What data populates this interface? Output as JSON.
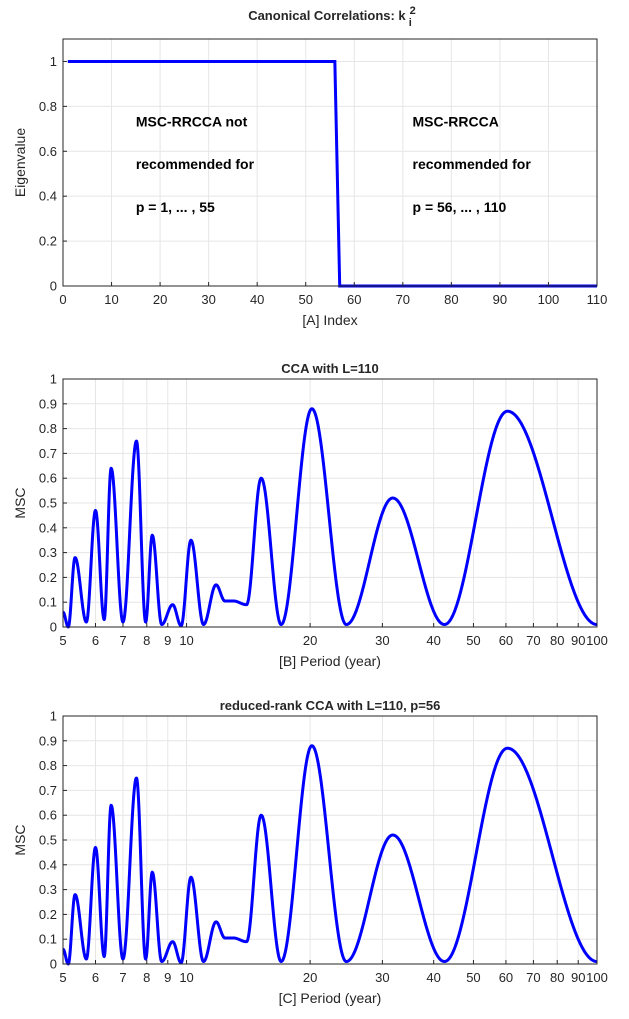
{
  "chart_data": [
    {
      "panel": "A",
      "type": "line",
      "title_prefix": "Canonical Correlations: k",
      "title_sup": "2",
      "title_sub": "i",
      "xlabel": "[A] Index",
      "ylabel": "Eigenvalue",
      "xlim": [
        0,
        110
      ],
      "ylim": [
        0,
        1.1
      ],
      "xticks": [
        0,
        10,
        20,
        30,
        40,
        50,
        60,
        70,
        80,
        90,
        100,
        110
      ],
      "xtick_labels": [
        "0",
        "10",
        "20",
        "30",
        "40",
        "50",
        "60",
        "70",
        "80",
        "90",
        "100",
        "110"
      ],
      "yticks": [
        0,
        0.2,
        0.4,
        0.6,
        0.8,
        1
      ],
      "ytick_labels": [
        "0",
        "0.2",
        "0.4",
        "0.6",
        "0.8",
        "1"
      ],
      "grid": true,
      "color": "#0000ff",
      "series": [
        {
          "x": [
            1,
            56,
            57,
            110
          ],
          "y": [
            1,
            1,
            0,
            0
          ]
        }
      ],
      "annotations": [
        {
          "lines": [
            "MSC-RRCCA not",
            "recommended for",
            "p = 1, ... , 55"
          ],
          "x": 15,
          "y": [
            0.71,
            0.52,
            0.33
          ]
        },
        {
          "lines": [
            "MSC-RRCCA",
            "recommended for",
            "p = 56, ... , 110"
          ],
          "x": 72,
          "y": [
            0.71,
            0.52,
            0.33
          ]
        }
      ]
    },
    {
      "panel": "B",
      "type": "line",
      "title": "CCA with L=110",
      "xlabel": "[B] Period (year)",
      "ylabel": "MSC",
      "xscale": "log",
      "xlim": [
        5,
        100
      ],
      "ylim": [
        0,
        1
      ],
      "xticks": [
        5,
        6,
        7,
        8,
        9,
        10,
        20,
        30,
        40,
        50,
        60,
        70,
        80,
        90,
        100
      ],
      "xtick_labels": [
        "5",
        "6",
        "7",
        "8",
        "9",
        "10",
        "20",
        "30",
        "40",
        "50",
        "60",
        "70",
        "80",
        "90",
        "100"
      ],
      "yticks": [
        0,
        0.1,
        0.2,
        0.3,
        0.4,
        0.5,
        0.6,
        0.7,
        0.8,
        0.9,
        1
      ],
      "ytick_labels": [
        "0",
        "0.1",
        "0.2",
        "0.3",
        "0.4",
        "0.5",
        "0.6",
        "0.7",
        "0.8",
        "0.9",
        "1"
      ],
      "grid": true,
      "color": "#0000ff",
      "peaks": [
        {
          "period": 5.0,
          "value": 0.06
        },
        {
          "period": 5.35,
          "value": 0.28
        },
        {
          "period": 6.0,
          "value": 0.47
        },
        {
          "period": 6.55,
          "value": 0.64
        },
        {
          "period": 7.55,
          "value": 0.75
        },
        {
          "period": 8.25,
          "value": 0.37
        },
        {
          "period": 9.25,
          "value": 0.09
        },
        {
          "period": 10.25,
          "value": 0.35
        },
        {
          "period": 11.8,
          "value": 0.17
        },
        {
          "period": 13.0,
          "value": 0.105
        },
        {
          "period": 15.2,
          "value": 0.6
        },
        {
          "period": 20.2,
          "value": 0.88
        },
        {
          "period": 31.8,
          "value": 0.52
        },
        {
          "period": 60.5,
          "value": 0.87
        }
      ],
      "troughs": [
        {
          "period": 5.15,
          "value": 0.0
        },
        {
          "period": 5.7,
          "value": 0.02
        },
        {
          "period": 6.3,
          "value": 0.03
        },
        {
          "period": 7.0,
          "value": 0.02
        },
        {
          "period": 7.95,
          "value": 0.02
        },
        {
          "period": 8.7,
          "value": 0.01
        },
        {
          "period": 9.7,
          "value": 0.005
        },
        {
          "period": 11.0,
          "value": 0.01
        },
        {
          "period": 12.4,
          "value": 0.105
        },
        {
          "period": 14.0,
          "value": 0.09
        },
        {
          "period": 17.0,
          "value": 0.01
        },
        {
          "period": 24.5,
          "value": 0.01
        },
        {
          "period": 42.5,
          "value": 0.01
        },
        {
          "period": 100,
          "value": 0.01
        }
      ]
    },
    {
      "panel": "C",
      "type": "line",
      "title": "reduced-rank CCA with L=110, p=56",
      "xlabel": "[C] Period (year)",
      "ylabel": "MSC",
      "xscale": "log",
      "xlim": [
        5,
        100
      ],
      "ylim": [
        0,
        1
      ],
      "xticks": [
        5,
        6,
        7,
        8,
        9,
        10,
        20,
        30,
        40,
        50,
        60,
        70,
        80,
        90,
        100
      ],
      "xtick_labels": [
        "5",
        "6",
        "7",
        "8",
        "9",
        "10",
        "20",
        "30",
        "40",
        "50",
        "60",
        "70",
        "80",
        "90",
        "100"
      ],
      "yticks": [
        0,
        0.1,
        0.2,
        0.3,
        0.4,
        0.5,
        0.6,
        0.7,
        0.8,
        0.9,
        1
      ],
      "ytick_labels": [
        "0",
        "0.1",
        "0.2",
        "0.3",
        "0.4",
        "0.5",
        "0.6",
        "0.7",
        "0.8",
        "0.9",
        "1"
      ],
      "grid": true,
      "color": "#0000ff",
      "peaks": [
        {
          "period": 5.0,
          "value": 0.06
        },
        {
          "period": 5.35,
          "value": 0.28
        },
        {
          "period": 6.0,
          "value": 0.47
        },
        {
          "period": 6.55,
          "value": 0.64
        },
        {
          "period": 7.55,
          "value": 0.75
        },
        {
          "period": 8.25,
          "value": 0.37
        },
        {
          "period": 9.25,
          "value": 0.09
        },
        {
          "period": 10.25,
          "value": 0.35
        },
        {
          "period": 11.8,
          "value": 0.17
        },
        {
          "period": 13.0,
          "value": 0.105
        },
        {
          "period": 15.2,
          "value": 0.6
        },
        {
          "period": 20.2,
          "value": 0.88
        },
        {
          "period": 31.8,
          "value": 0.52
        },
        {
          "period": 60.5,
          "value": 0.87
        }
      ],
      "troughs": [
        {
          "period": 5.15,
          "value": 0.0
        },
        {
          "period": 5.7,
          "value": 0.02
        },
        {
          "period": 6.3,
          "value": 0.03
        },
        {
          "period": 7.0,
          "value": 0.02
        },
        {
          "period": 7.95,
          "value": 0.02
        },
        {
          "period": 8.7,
          "value": 0.01
        },
        {
          "period": 9.7,
          "value": 0.005
        },
        {
          "period": 11.0,
          "value": 0.01
        },
        {
          "period": 12.4,
          "value": 0.105
        },
        {
          "period": 14.0,
          "value": 0.09
        },
        {
          "period": 17.0,
          "value": 0.01
        },
        {
          "period": 24.5,
          "value": 0.01
        },
        {
          "period": 42.5,
          "value": 0.01
        },
        {
          "period": 100,
          "value": 0.01
        }
      ]
    }
  ]
}
